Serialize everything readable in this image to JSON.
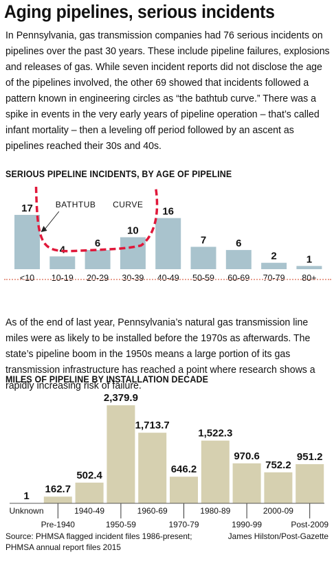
{
  "title": "Aging pipelines, serious incidents",
  "intro": "In Pennsylvania, gas transmission companies had 76 serious incidents on pipelines over the past 30 years. These include pipeline failures, explosions and releases of gas. While seven incident reports did not disclose the age of the pipelines involved, the other 69 showed that incidents followed a pattern known in engineering circles as “the bathtub curve.” There was a spike in events in the very early years of pipeline operation – that’s called infant mortality – then a leveling off period followed by an ascent as pipelines reached their 30s and 40s.",
  "second_paragraph": "As of the end of last year, Pennsylvania’s natural gas transmission line miles were as likely to be installed before the 1970s as afterwards. The state’s pipeline boom in the 1950s means a large portion of its gas transmission infrastructure has reached a point where research shows a rapidly increasing risk of failure.",
  "source": "Source: PHMSA flagged incident files 1986-present; PHMSA annual report files 2015",
  "credit": "James Hilston/Post-Gazette",
  "colors": {
    "incident_bar": "#a9c3cd",
    "mileage_bar": "#d6d0b0",
    "curve": "#e0183a",
    "divider": "#e8a090"
  },
  "chart_data": [
    {
      "type": "bar",
      "title": "SERIOUS PIPELINE INCIDENTS, BY AGE OF PIPELINE",
      "categories": [
        "<10",
        "10-19",
        "20-29",
        "30-39",
        "40-49",
        "50-59",
        "60-69",
        "70-79",
        "80+"
      ],
      "values": [
        17,
        4,
        6,
        10,
        16,
        7,
        6,
        2,
        1
      ],
      "value_labels": [
        "17",
        "4",
        "6",
        "10",
        "16",
        "7",
        "6",
        "2",
        "1"
      ],
      "ylim": [
        0,
        20
      ],
      "annotation": {
        "word1": "BATHTUB",
        "word2": "CURVE"
      },
      "grid": false
    },
    {
      "type": "bar",
      "title": "MILES OF PIPELINE BY INSTALLATION DECADE",
      "categories": [
        "Unknown",
        "Pre-1940",
        "1940-49",
        "1950-59",
        "1960-69",
        "1970-79",
        "1980-89",
        "1990-99",
        "2000-09",
        "Post-2009"
      ],
      "values": [
        1,
        162.7,
        502.4,
        2379.9,
        1713.7,
        646.2,
        1522.3,
        970.6,
        752.2,
        951.2
      ],
      "value_labels": [
        "1",
        "162.7",
        "502.4",
        "2,379.9",
        "1,713.7",
        "646.2",
        "1,522.3",
        "970.6",
        "752.2",
        "951.2"
      ],
      "ylim": [
        0,
        2500
      ],
      "grid": false
    }
  ]
}
